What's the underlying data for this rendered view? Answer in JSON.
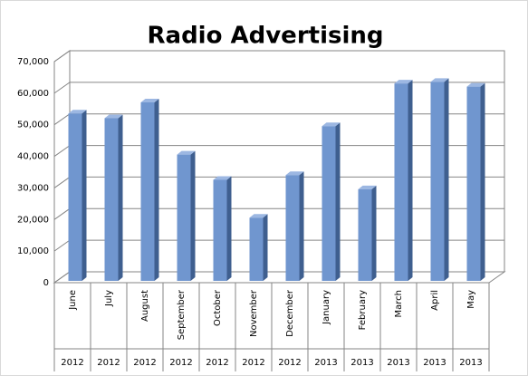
{
  "chart_data": {
    "type": "bar3d",
    "title": "Radio Advertising",
    "categories": [
      "June",
      "July",
      "August",
      "September",
      "October",
      "November",
      "December",
      "January",
      "February",
      "March",
      "April",
      "May"
    ],
    "years": [
      "2012",
      "2012",
      "2012",
      "2012",
      "2012",
      "2012",
      "2012",
      "2013",
      "2013",
      "2013",
      "2013",
      "2013"
    ],
    "values": [
      53000,
      51500,
      56500,
      40000,
      32000,
      20000,
      33500,
      49000,
      29000,
      62500,
      63000,
      61500
    ],
    "color": "#7096cf",
    "ylim": [
      0,
      70000
    ],
    "yticks": [
      0,
      {
        "value": 10000,
        "label": "10,000"
      },
      {
        "value": 20000,
        "label": "20,000"
      },
      {
        "value": 30000,
        "label": "30,000"
      },
      {
        "value": 40000,
        "label": "40,000"
      },
      {
        "value": 50000,
        "label": "50,000"
      },
      {
        "value": 60000,
        "label": "60,000"
      },
      {
        "value": 70000,
        "label": "70,000"
      }
    ],
    "grid": true
  }
}
